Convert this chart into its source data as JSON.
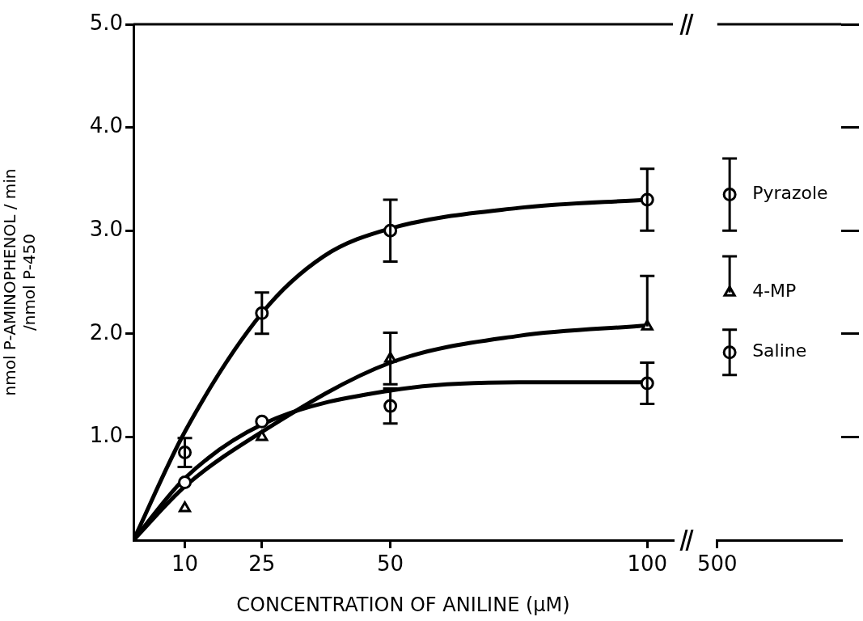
{
  "chart_data": [
    {
      "type": "scatter",
      "xlabel": "CONCENTRATION OF ANILINE (μM)",
      "ylabel": "nmol P-AMINOPHENOL / min\n/nmol P-450",
      "xlim": [
        0,
        105
      ],
      "xticks": [
        10,
        25,
        50,
        100
      ],
      "ylim": [
        0,
        5
      ],
      "yticks": [
        {
          "value": 1,
          "label": "1.0"
        },
        {
          "value": 2,
          "label": "2.0"
        },
        {
          "value": 3,
          "label": "3.0"
        },
        {
          "value": 4,
          "label": "4.0"
        },
        {
          "value": 5,
          "label": "5.0"
        }
      ],
      "grid": false,
      "legend": false,
      "series": [
        {
          "type": "scatter",
          "marker": "circle",
          "color": "#000000",
          "x": [
            10,
            25,
            50,
            100
          ],
          "values": [
            0.85,
            2.2,
            3.0,
            3.3
          ],
          "errors": [
            0.14,
            0.2,
            0.3,
            0.3
          ]
        },
        {
          "type": "scatter",
          "marker": "triangle",
          "color": "#000000",
          "x": [
            10,
            25,
            50,
            100
          ],
          "values": [
            0.31,
            1.0,
            1.76,
            2.07
          ],
          "errors": [
            null,
            null,
            0.25,
            [
              2.07,
              2.56
            ]
          ]
        },
        {
          "type": "scatter",
          "marker": "circle",
          "color": "#000000",
          "x": [
            10,
            25,
            50,
            100
          ],
          "values": [
            0.56,
            1.15,
            1.3,
            1.52
          ],
          "errors": [
            null,
            null,
            0.17,
            0.2
          ]
        },
        {
          "type": "line",
          "color": "#000000",
          "x": [
            0,
            10,
            25,
            37,
            50,
            75,
            100
          ],
          "values": [
            0,
            1.05,
            2.2,
            2.75,
            3.02,
            3.22,
            3.3
          ]
        },
        {
          "type": "line",
          "color": "#000000",
          "x": [
            0,
            10,
            25,
            50,
            75,
            100
          ],
          "values": [
            0,
            0.52,
            1.05,
            1.72,
            1.98,
            2.08
          ]
        },
        {
          "type": "line",
          "color": "#000000",
          "x": [
            0,
            10,
            25,
            50,
            75,
            100
          ],
          "values": [
            0,
            0.6,
            1.12,
            1.45,
            1.53,
            1.53
          ]
        }
      ]
    },
    {
      "type": "scatter",
      "categories": [
        "500"
      ],
      "ylim": [
        0,
        5
      ],
      "yticks": [
        {
          "value": 1,
          "label": null
        },
        {
          "value": 2,
          "label": null
        },
        {
          "value": 3,
          "label": null
        },
        {
          "value": 4,
          "label": null
        },
        {
          "value": 5,
          "label": null
        }
      ],
      "tick_labels": "x",
      "grid": false,
      "legend": false,
      "series": [
        {
          "type": "scatter",
          "name": "Pyrazole",
          "marker": "circle",
          "color": "#000000",
          "x": [
            "500"
          ],
          "values": [
            3.35
          ],
          "errors": [
            [
              3.0,
              3.7
            ]
          ]
        },
        {
          "type": "scatter",
          "name": "4-MP",
          "marker": "triangle",
          "color": "#000000",
          "x": [
            "500"
          ],
          "values": [
            2.4
          ],
          "errors": [
            [
              2.4,
              2.75
            ]
          ]
        },
        {
          "type": "scatter",
          "name": "Saline",
          "marker": "circle",
          "color": "#000000",
          "x": [
            "500"
          ],
          "values": [
            1.82
          ],
          "errors": [
            0.22
          ]
        }
      ]
    }
  ]
}
